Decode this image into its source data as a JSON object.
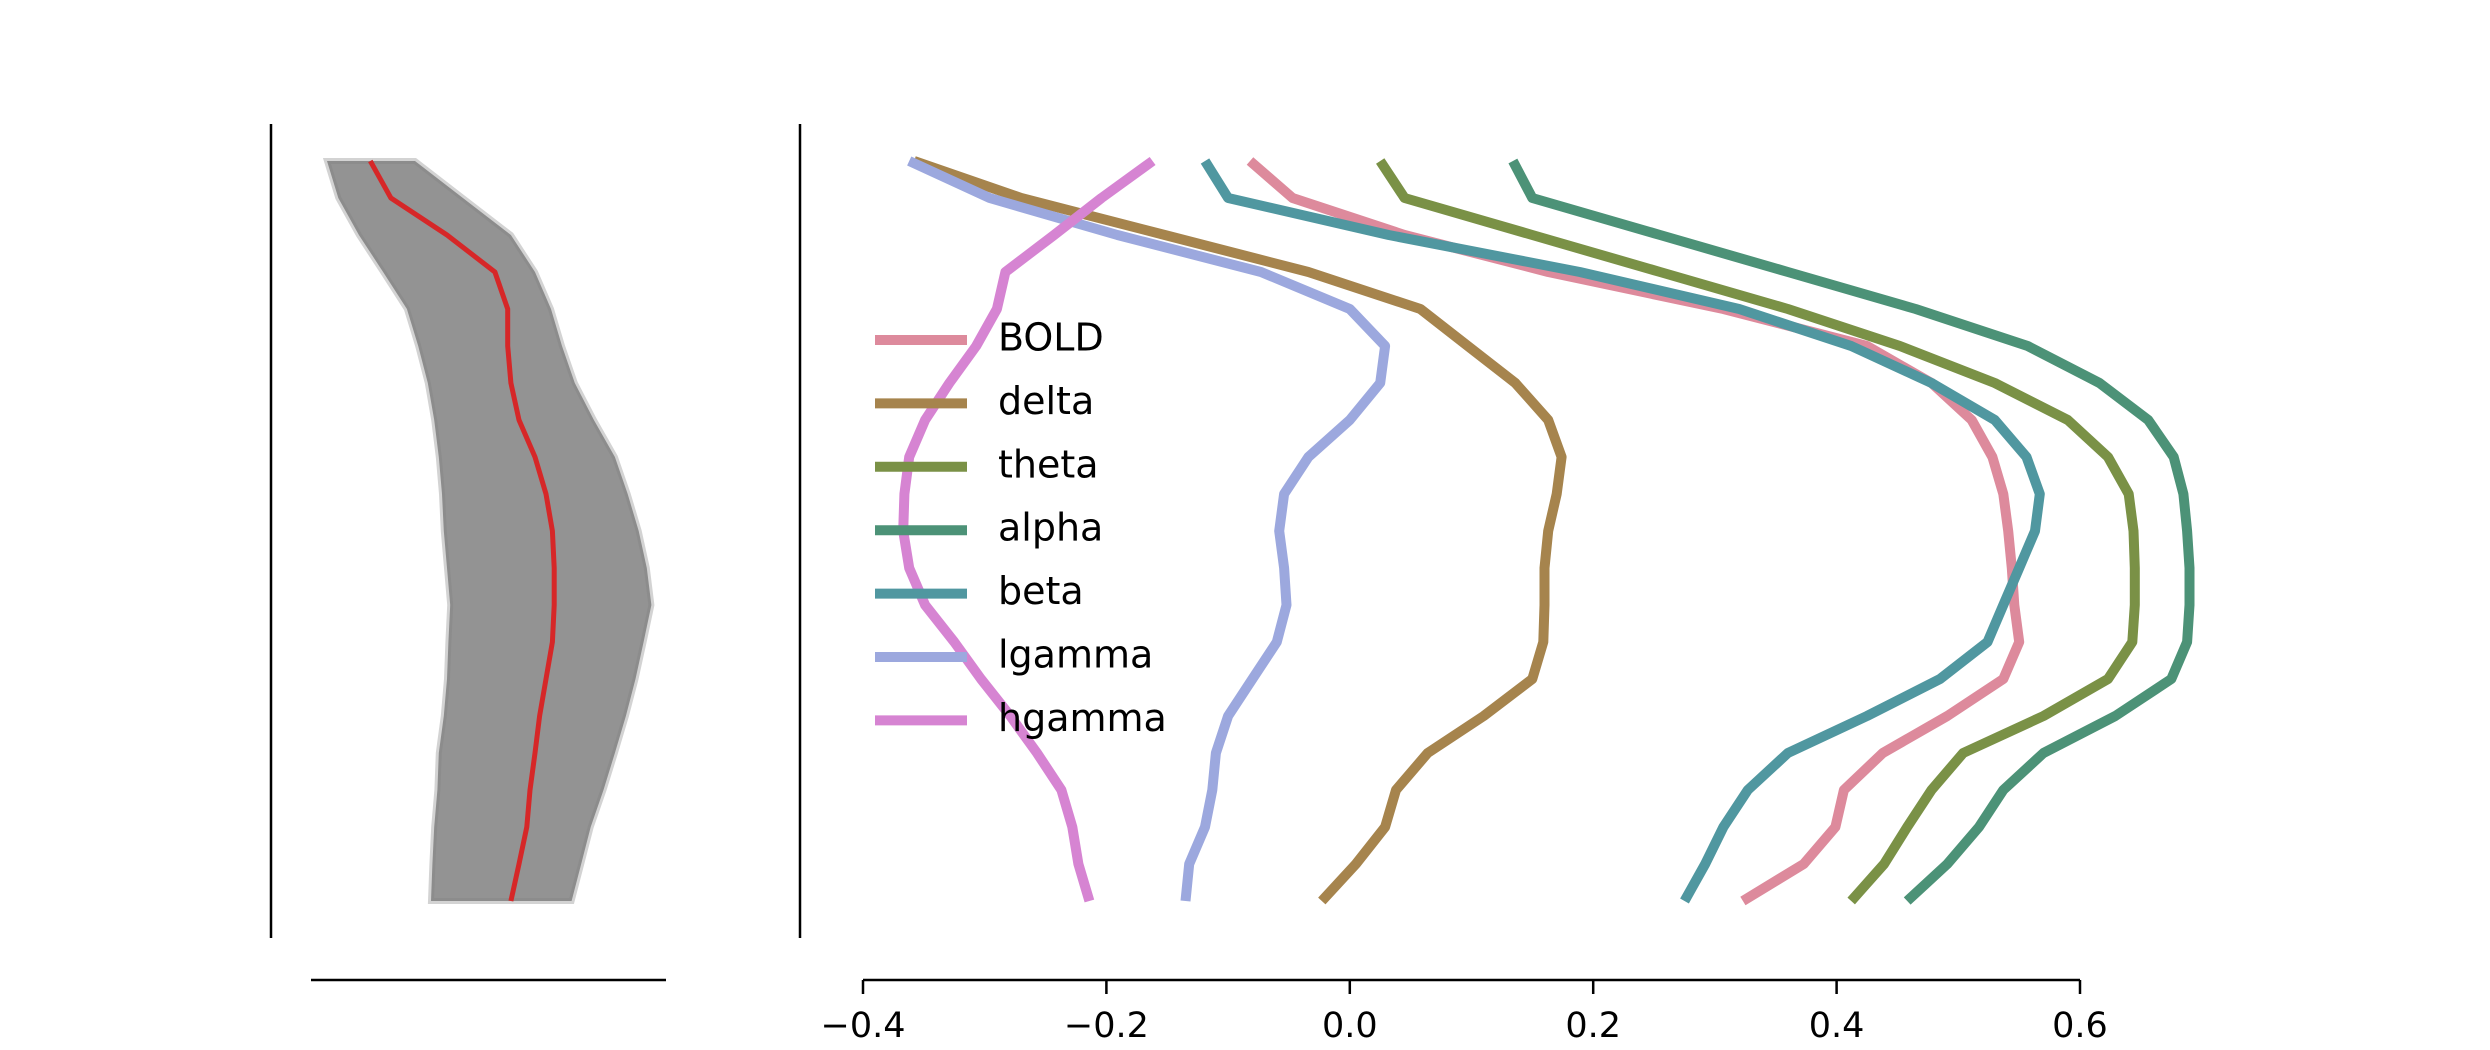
{
  "chart_data": [
    {
      "type": "band-line",
      "y": [
        0,
        1,
        2,
        3,
        4,
        5,
        6,
        7,
        8,
        9,
        10,
        11,
        12,
        13,
        14,
        15,
        16,
        17,
        18,
        19,
        20
      ],
      "ylim": [
        -1,
        21
      ],
      "xlim": [
        0,
        1
      ],
      "band_color": "#808080",
      "color": "#d62728",
      "band_lower": [
        0.045,
        0.077,
        0.135,
        0.203,
        0.27,
        0.302,
        0.329,
        0.347,
        0.36,
        0.369,
        0.374,
        0.383,
        0.392,
        0.387,
        0.383,
        0.374,
        0.36,
        0.356,
        0.347,
        0.342,
        0.338
      ],
      "band_upper": [
        0.293,
        0.428,
        0.563,
        0.631,
        0.676,
        0.707,
        0.743,
        0.797,
        0.856,
        0.892,
        0.923,
        0.946,
        0.959,
        0.937,
        0.914,
        0.887,
        0.856,
        0.824,
        0.788,
        0.761,
        0.734
      ],
      "values": [
        0.167,
        0.225,
        0.383,
        0.518,
        0.554,
        0.554,
        0.563,
        0.586,
        0.631,
        0.662,
        0.68,
        0.685,
        0.685,
        0.68,
        0.662,
        0.644,
        0.631,
        0.617,
        0.608,
        0.586,
        0.563
      ]
    },
    {
      "type": "line",
      "y": [
        0,
        1,
        2,
        3,
        4,
        5,
        6,
        7,
        8,
        9,
        10,
        11,
        12,
        13,
        14,
        15,
        16,
        17,
        18,
        19,
        20
      ],
      "ylim": [
        -1,
        21
      ],
      "xlim": [
        -0.4,
        0.6
      ],
      "xticks": [
        {
          "value": -0.4,
          "label": "−0.4"
        },
        {
          "value": -0.2,
          "label": "−0.2"
        },
        {
          "value": 0.0,
          "label": "0.0"
        },
        0.2,
        0.4,
        0.6
      ],
      "legend": "upper left",
      "series": [
        {
          "name": "BOLD",
          "color": "#dd8a9c",
          "values": [
            -0.082,
            -0.047,
            0.045,
            0.163,
            0.307,
            0.425,
            0.478,
            0.511,
            0.528,
            0.537,
            0.541,
            0.544,
            0.546,
            0.55,
            0.537,
            0.491,
            0.438,
            0.406,
            0.399,
            0.373,
            0.323
          ]
        },
        {
          "name": "delta",
          "color": "#a6844d",
          "values": [
            -0.358,
            -0.27,
            -0.152,
            -0.034,
            0.058,
            0.097,
            0.136,
            0.163,
            0.174,
            0.17,
            0.163,
            0.16,
            0.16,
            0.159,
            0.15,
            0.11,
            0.064,
            0.038,
            0.029,
            0.005,
            -0.023
          ]
        },
        {
          "name": "theta",
          "color": "#7a9146",
          "values": [
            0.025,
            0.045,
            0.15,
            0.255,
            0.36,
            0.452,
            0.53,
            0.59,
            0.623,
            0.64,
            0.644,
            0.645,
            0.645,
            0.643,
            0.623,
            0.57,
            0.504,
            0.478,
            0.458,
            0.439,
            0.412
          ]
        },
        {
          "name": "alpha",
          "color": "#4c9277",
          "values": [
            0.134,
            0.15,
            0.255,
            0.36,
            0.465,
            0.557,
            0.616,
            0.656,
            0.677,
            0.685,
            0.688,
            0.69,
            0.69,
            0.688,
            0.675,
            0.629,
            0.57,
            0.537,
            0.517,
            0.491,
            0.458
          ]
        },
        {
          "name": "beta",
          "color": "#5097a0",
          "values": [
            -0.119,
            -0.1,
            0.032,
            0.189,
            0.32,
            0.412,
            0.478,
            0.53,
            0.556,
            0.567,
            0.563,
            0.55,
            0.537,
            0.524,
            0.485,
            0.425,
            0.36,
            0.327,
            0.307,
            0.292,
            0.275
          ]
        },
        {
          "name": "lgamma",
          "color": "#9ca8de",
          "values": [
            -0.362,
            -0.296,
            -0.191,
            -0.073,
            0.0,
            0.029,
            0.025,
            0.0,
            -0.034,
            -0.054,
            -0.058,
            -0.054,
            -0.052,
            -0.06,
            -0.08,
            -0.1,
            -0.11,
            -0.113,
            -0.119,
            -0.132,
            -0.135
          ]
        },
        {
          "name": "hgamma",
          "color": "#d684d2",
          "values": [
            -0.162,
            -0.204,
            -0.243,
            -0.283,
            -0.29,
            -0.307,
            -0.329,
            -0.349,
            -0.362,
            -0.366,
            -0.367,
            -0.362,
            -0.349,
            -0.325,
            -0.303,
            -0.279,
            -0.257,
            -0.237,
            -0.228,
            -0.223,
            -0.214
          ]
        }
      ]
    }
  ]
}
